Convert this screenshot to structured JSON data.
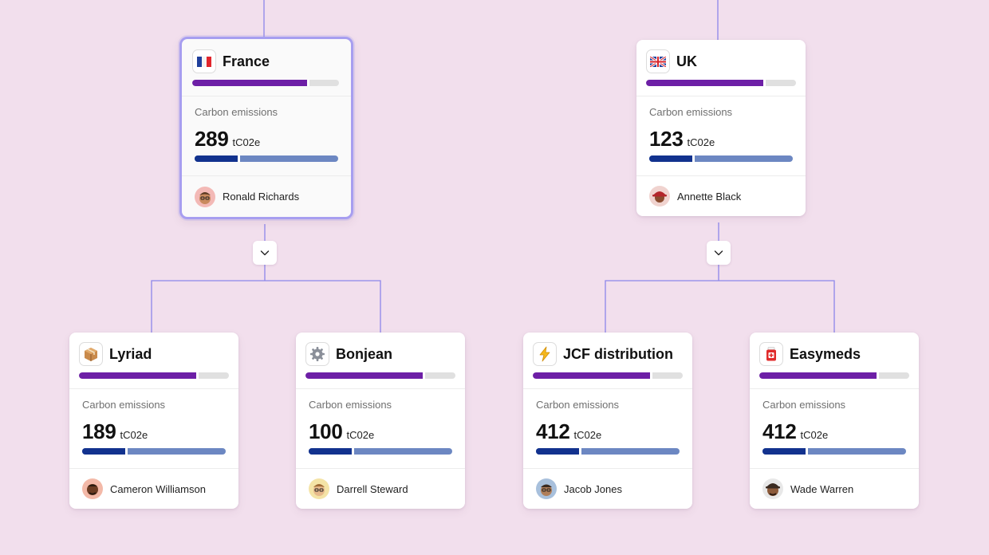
{
  "colors": {
    "background": "#f2dfed",
    "connector": "#8d86ea",
    "progress_primary": "#6d1fa6",
    "emission_dark": "#12328e",
    "emission_light": "#6c87c2",
    "selected_border": "#a79ef0"
  },
  "metric_label": "Carbon emissions",
  "metric_unit": "tC02e",
  "nodes": {
    "france": {
      "name": "France",
      "icon": "france-flag-icon",
      "emissions": "289",
      "progress": 0.78,
      "emission_share": 0.3,
      "owner": "Ronald Richards",
      "avatar": "ronald-richards-avatar",
      "selected": true
    },
    "uk": {
      "name": "UK",
      "icon": "uk-flag-icon",
      "emissions": "123",
      "progress": 0.78,
      "emission_share": 0.3,
      "owner": "Annette Black",
      "avatar": "annette-black-avatar",
      "selected": false
    },
    "lyriad": {
      "name": "Lyriad",
      "icon": "package-icon",
      "emissions": "189",
      "progress": 0.78,
      "emission_share": 0.3,
      "owner": "Cameron Williamson",
      "avatar": "cameron-williamson-avatar",
      "selected": false
    },
    "bonjean": {
      "name": "Bonjean",
      "icon": "gear-icon",
      "emissions": "100",
      "progress": 0.78,
      "emission_share": 0.3,
      "owner": "Darrell Steward",
      "avatar": "darrell-steward-avatar",
      "selected": false
    },
    "jcf": {
      "name": "JCF distribution",
      "icon": "lightning-icon",
      "emissions": "412",
      "progress": 0.78,
      "emission_share": 0.3,
      "owner": "Jacob Jones",
      "avatar": "jacob-jones-avatar",
      "selected": false
    },
    "easymeds": {
      "name": "Easymeds",
      "icon": "medicine-icon",
      "emissions": "412",
      "progress": 0.78,
      "emission_share": 0.3,
      "owner": "Wade Warren",
      "avatar": "wade-warren-avatar",
      "selected": false
    }
  },
  "expand_buttons": {
    "france": {
      "icon": "chevron-down-icon"
    },
    "uk": {
      "icon": "chevron-down-icon"
    }
  }
}
